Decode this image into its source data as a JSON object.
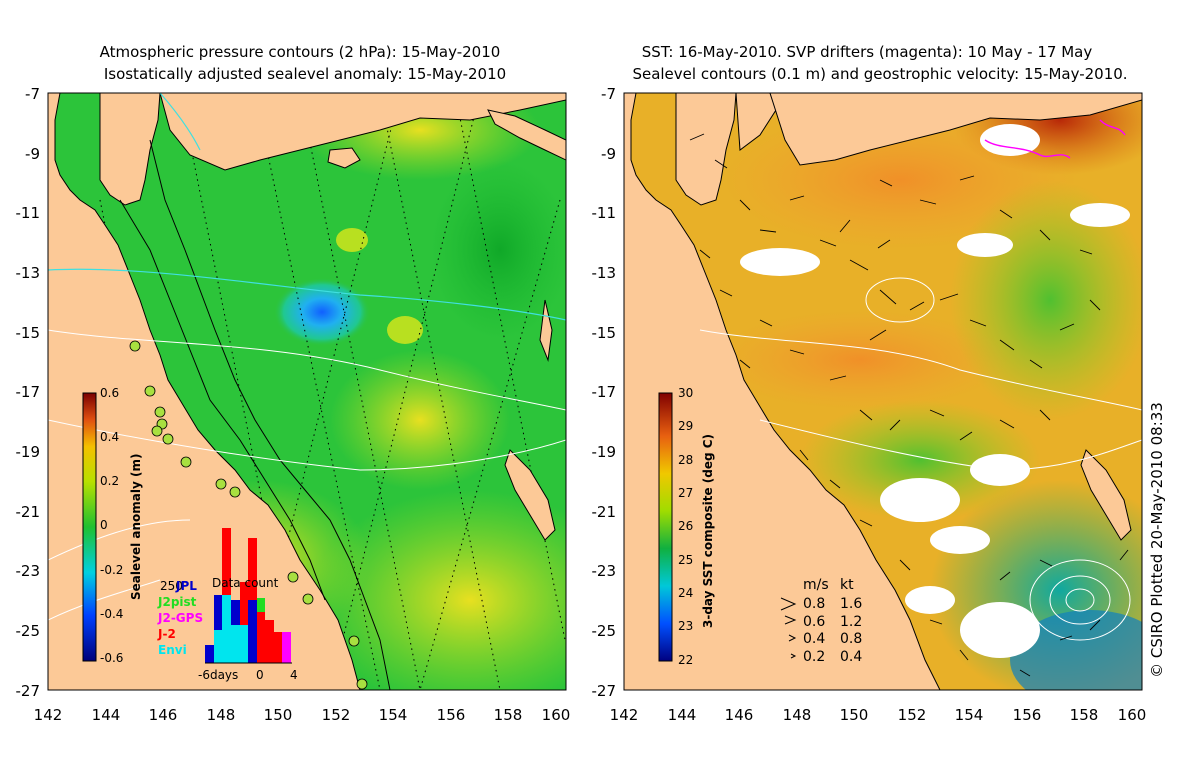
{
  "left_panel": {
    "title_line1": "Atmospheric pressure contours (2 hPa): 15-May-2010",
    "title_line2": "Isostatically adjusted sealevel anomaly: 15-May-2010",
    "colorbar": {
      "label": "Sealevel anomaly (m)",
      "min": -0.6,
      "max": 0.6,
      "ticks": [
        "0.6",
        "0.4",
        "0.2",
        "0",
        "-0.2",
        "-0.4",
        "-0.6"
      ]
    },
    "data_count": {
      "title": "Data count",
      "max_label": "250",
      "axis_labels": [
        "-6days",
        "0",
        "4"
      ],
      "legend": [
        {
          "label": "JPL",
          "color": "#0000cc"
        },
        {
          "label": "J2pist",
          "color": "#22dd22"
        },
        {
          "label": "J2-GPS",
          "color": "#ff00ff"
        },
        {
          "label": "J-2",
          "color": "#ff0000"
        },
        {
          "label": "Envi",
          "color": "#00e5ee"
        }
      ]
    }
  },
  "right_panel": {
    "title_line1": "SST: 16-May-2010. SVP drifters (magenta): 10 May - 17 May",
    "title_line2": "Sealevel contours (0.1 m) and geostrophic velocity: 15-May-2010.",
    "colorbar": {
      "label": "3-day SST composite (deg C)",
      "min": 22,
      "max": 30,
      "ticks": [
        "30",
        "29",
        "28",
        "27",
        "26",
        "25",
        "24",
        "23",
        "22"
      ]
    },
    "speed_legend": {
      "header_ms": "m/s",
      "header_kt": "kt",
      "rows": [
        {
          "ms": "0.8",
          "kt": "1.6"
        },
        {
          "ms": "0.6",
          "kt": "1.2"
        },
        {
          "ms": "0.4",
          "kt": "0.8"
        },
        {
          "ms": "0.2",
          "kt": "0.4"
        }
      ]
    }
  },
  "axes": {
    "lon_labels": [
      "142",
      "144",
      "146",
      "148",
      "150",
      "152",
      "154",
      "156",
      "158",
      "160"
    ],
    "lat_labels": [
      "-7",
      "-9",
      "-11",
      "-13",
      "-15",
      "-17",
      "-19",
      "-21",
      "-23",
      "-25",
      "-27"
    ]
  },
  "credit": "© CSIRO Plotted 20-May-2010 08:33",
  "colors": {
    "land": "#fcc997",
    "sla_green": "#33cc22",
    "sst_orange": "#f0a030",
    "contour_white": "#ffffff",
    "pressure_cyan": "#33dddd",
    "drifter_magenta": "#ff00ff"
  }
}
